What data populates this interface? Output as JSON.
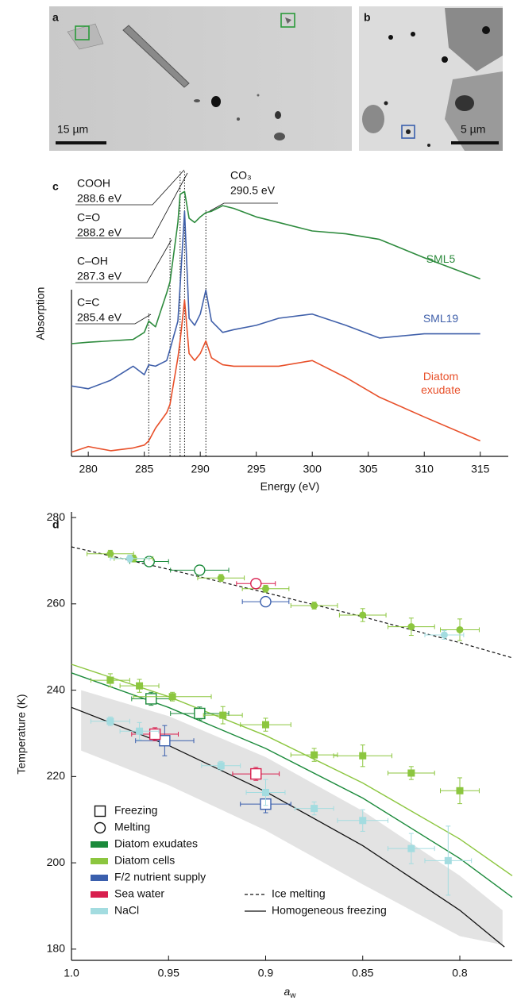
{
  "panels": [
    {
      "label": "a",
      "scale_bar": "15 µm"
    },
    {
      "label": "b",
      "scale_bar": "5 µm"
    }
  ],
  "chart_data": [
    {
      "type": "line",
      "panel_label": "c",
      "xlabel": "Energy (eV)",
      "ylabel": "Absorption",
      "xlim": [
        278.5,
        317.5
      ],
      "ylim": [
        0,
        10
      ],
      "xticks": [
        280,
        285,
        290,
        295,
        300,
        305,
        310,
        315
      ],
      "x": [
        278.5,
        280,
        282,
        284,
        285,
        285.4,
        286,
        287,
        287.3,
        288,
        288.2,
        288.6,
        289,
        289.5,
        290,
        290.5,
        291,
        292,
        293,
        295,
        297,
        300,
        303,
        306,
        310,
        315
      ],
      "series": [
        {
          "name": "SML5",
          "color": "#2e8b3e",
          "values": [
            4.0,
            4.05,
            4.1,
            4.15,
            4.4,
            4.8,
            4.6,
            5.8,
            6.2,
            8.3,
            9.3,
            9.4,
            8.45,
            8.3,
            8.5,
            8.65,
            8.7,
            8.9,
            8.8,
            8.5,
            8.3,
            8.0,
            7.9,
            7.7,
            7.05,
            6.3
          ]
        },
        {
          "name": "SML19",
          "color": "#4060aa",
          "values": [
            2.5,
            2.4,
            2.7,
            3.2,
            2.9,
            3.25,
            3.2,
            3.4,
            3.8,
            4.8,
            6.05,
            8.7,
            4.9,
            4.65,
            5.05,
            5.9,
            4.8,
            4.4,
            4.5,
            4.65,
            4.9,
            5.05,
            4.65,
            4.2,
            4.35,
            4.35
          ]
        },
        {
          "name": "Diatom exudate",
          "color": "#e8502a",
          "values": [
            0.15,
            0.35,
            0.2,
            0.3,
            0.4,
            0.55,
            1.0,
            1.55,
            1.85,
            3.5,
            4.1,
            5.55,
            3.65,
            3.4,
            3.65,
            4.1,
            3.5,
            3.25,
            3.2,
            3.2,
            3.2,
            3.4,
            2.8,
            2.1,
            1.4,
            0.55
          ]
        }
      ],
      "annotations": [
        {
          "name": "COOH",
          "energy": {
            "value": 288.6,
            "label": "288.6 eV"
          }
        },
        {
          "name": "C=O",
          "energy": {
            "value": 288.2,
            "label": "288.2 eV"
          }
        },
        {
          "name": "C–OH",
          "energy": {
            "value": 287.3,
            "label": "287.3 eV"
          }
        },
        {
          "name": "C=C",
          "energy": {
            "value": 285.4,
            "label": "285.4 eV"
          }
        },
        {
          "name": "CO₃",
          "energy": {
            "value": 290.5,
            "label": "290.5 eV"
          }
        }
      ]
    },
    {
      "type": "scatter",
      "panel_label": "d",
      "xlabel": {
        "main": "a",
        "sub": "w"
      },
      "ylabel": "Temperature (K)",
      "xlim": [
        1.0,
        0.773
      ],
      "ylim": [
        177.4,
        281.3
      ],
      "xticks": [
        {
          "value": 1,
          "label": "1.0"
        },
        0.95,
        0.9,
        0.85,
        0.8
      ],
      "yticks": [
        180,
        200,
        220,
        240,
        260,
        280
      ],
      "markers": [
        {
          "name": "Freezing",
          "shape": "square"
        },
        {
          "name": "Melting",
          "shape": "circle"
        }
      ],
      "series": [
        {
          "name": "Diatom exudates",
          "color": "#1b8a3b",
          "filled": false,
          "freezing": {
            "x": [
              0.959,
              0.934
            ],
            "y": [
              238,
              234.6
            ],
            "xerr": [
              0.01,
              0.015
            ],
            "yerr": [
              1.5,
              1.5
            ]
          },
          "melting": {
            "x": [
              0.96,
              0.934
            ],
            "y": [
              269.8,
              267.8
            ],
            "xerr": [
              0.01,
              0.015
            ],
            "yerr": [
              1,
              1
            ]
          },
          "fit": {
            "x": [
              1.0,
              0.95,
              0.9,
              0.85,
              0.8,
              0.773
            ],
            "y": [
              244,
              236,
              226.5,
              215,
              201,
              192
            ]
          }
        },
        {
          "name": "Diatom cells",
          "color": "#8cc63f",
          "filled": true,
          "freezing": {
            "x": [
              0.98,
              0.965,
              0.948,
              0.922,
              0.9,
              0.875,
              0.85,
              0.825,
              0.8
            ],
            "y": [
              242.3,
              241,
              238.5,
              234.2,
              232,
              225,
              224.8,
              220.8,
              216.7
            ],
            "xerr": [
              0.01,
              0.01,
              0.02,
              0.01,
              0.013,
              0.012,
              0.015,
              0.012,
              0.01
            ],
            "yerr": [
              1.5,
              1.5,
              1,
              2,
              1.5,
              1.5,
              2.5,
              1.5,
              3
            ]
          },
          "melting": {
            "x": [
              0.98,
              0.968,
              0.923,
              0.9,
              0.875,
              0.85,
              0.825,
              0.8
            ],
            "y": [
              271.6,
              270.5,
              266,
              263.5,
              259.6,
              257.4,
              254.7,
              254
            ],
            "xerr": [
              0.012,
              0.01,
              0.012,
              0.012,
              0.012,
              0.012,
              0.012,
              0.01
            ],
            "yerr": [
              0.8,
              0.8,
              0.8,
              0.8,
              0.8,
              1.5,
              2,
              2.5
            ]
          },
          "fit": {
            "x": [
              1.0,
              0.95,
              0.9,
              0.85,
              0.8,
              0.773
            ],
            "y": [
              246,
              238.5,
              229.5,
              218.5,
              205.5,
              197
            ]
          }
        },
        {
          "name": "F/2 nutrient supply",
          "color": "#3a5fad",
          "filled": false,
          "freezing": {
            "x": [
              0.952,
              0.9
            ],
            "y": [
              228.3,
              213.6
            ],
            "xerr": [
              0.015,
              0.013
            ],
            "yerr": [
              3.5,
              2
            ]
          },
          "melting": {
            "x": [
              0.9
            ],
            "y": [
              260.5
            ],
            "xerr": [
              0.012
            ],
            "yerr": [
              1
            ]
          }
        },
        {
          "name": "Sea water",
          "color": "#d81f4e",
          "filled": false,
          "freezing": {
            "x": [
              0.957,
              0.905
            ],
            "y": [
              229.8,
              220.6
            ],
            "xerr": [
              0.012,
              0.012
            ],
            "yerr": [
              1.5,
              1.5
            ]
          },
          "melting": {
            "x": [
              0.905
            ],
            "y": [
              264.7
            ],
            "xerr": [
              0.01
            ],
            "yerr": [
              0.8
            ]
          }
        },
        {
          "name": "NaCl",
          "color": "#a3dce0",
          "filled": true,
          "freezing": {
            "x": [
              0.98,
              0.965,
              0.923,
              0.9,
              0.875,
              0.85,
              0.825,
              0.806
            ],
            "y": [
              232.8,
              230.5,
              222.5,
              216.3,
              212.6,
              209.8,
              203.3,
              200.5
            ],
            "xerr": [
              0.01,
              0.01,
              0.01,
              0.01,
              0.01,
              0.013,
              0.012,
              0.012
            ],
            "yerr": [
              1,
              2,
              1,
              3,
              1.5,
              2.5,
              3.5,
              8
            ]
          },
          "melting": {
            "x": [
              0.97,
              0.808
            ],
            "y": [
              270.5,
              252.8
            ],
            "xerr": [
              0.01,
              0.01
            ],
            "yerr": [
              0.8,
              1
            ]
          }
        }
      ],
      "ice_melting": {
        "name": "Ice melting",
        "color": "#111111",
        "style": "dashed",
        "x": [
          1.0,
          0.95,
          0.9,
          0.85,
          0.8,
          0.773
        ],
        "y": [
          273.2,
          268,
          262.6,
          257,
          251,
          247.5
        ]
      },
      "homogeneous_freezing": {
        "name": "Homogeneous freezing",
        "color": "#111111",
        "style": "solid",
        "x": [
          1.0,
          0.95,
          0.9,
          0.85,
          0.8,
          0.777
        ],
        "y": [
          236,
          227.2,
          216.5,
          204,
          189,
          180.5
        ]
      },
      "band": {
        "color": "#e3e3e3",
        "x": [
          0.995,
          0.95,
          0.9,
          0.85,
          0.8,
          0.778
        ],
        "upper": [
          240,
          234,
          224.5,
          212,
          197,
          189
        ],
        "lower": [
          226,
          218,
          207.5,
          195,
          183,
          181
        ]
      }
    }
  ]
}
